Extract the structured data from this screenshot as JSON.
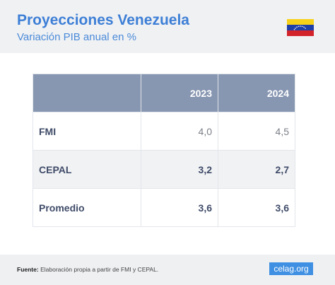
{
  "header": {
    "title": "Proyecciones Venezuela",
    "subtitle": "Variación PIB anual en %"
  },
  "table": {
    "columns": [
      "2023",
      "2024"
    ],
    "rows": [
      {
        "label": "FMI",
        "values": [
          "4,0",
          "4,5"
        ]
      },
      {
        "label": "CEPAL",
        "values": [
          "3,2",
          "2,7"
        ]
      },
      {
        "label": "Promedio",
        "values": [
          "3,6",
          "3,6"
        ]
      }
    ]
  },
  "footer": {
    "source_label": "Fuente:",
    "source": "Elaboración propia a partir de FMI y CEPAL.",
    "logo": "celag.org"
  }
}
